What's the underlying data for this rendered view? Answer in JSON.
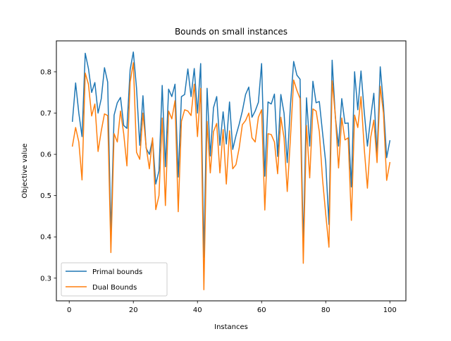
{
  "chart_data": {
    "type": "line",
    "title": "Bounds on small instances",
    "xlabel": "Instances",
    "ylabel": "Objective value",
    "xlim": [
      -4,
      105
    ],
    "ylim": [
      0.245,
      0.875
    ],
    "xticks": [
      0,
      20,
      40,
      60,
      80,
      100
    ],
    "yticks": [
      0.3,
      0.4,
      0.5,
      0.6,
      0.7,
      0.8
    ],
    "xtick_labels": [
      "0",
      "20",
      "40",
      "60",
      "80",
      "100"
    ],
    "ytick_labels": [
      "0.3",
      "0.4",
      "0.5",
      "0.6",
      "0.7",
      "0.8"
    ],
    "grid": false,
    "legend_position": "lower-left",
    "x": [
      1,
      2,
      3,
      4,
      5,
      6,
      7,
      8,
      9,
      10,
      11,
      12,
      13,
      14,
      15,
      16,
      17,
      18,
      19,
      20,
      21,
      22,
      23,
      24,
      25,
      26,
      27,
      28,
      29,
      30,
      31,
      32,
      33,
      34,
      35,
      36,
      37,
      38,
      39,
      40,
      41,
      42,
      43,
      44,
      45,
      46,
      47,
      48,
      49,
      50,
      51,
      52,
      53,
      54,
      55,
      56,
      57,
      58,
      59,
      60,
      61,
      62,
      63,
      64,
      65,
      66,
      67,
      68,
      69,
      70,
      71,
      72,
      73,
      74,
      75,
      76,
      77,
      78,
      79,
      80,
      81,
      82,
      83,
      84,
      85,
      86,
      87,
      88,
      89,
      90,
      91,
      92,
      93,
      94,
      95,
      96,
      97,
      98,
      99,
      100
    ],
    "series": [
      {
        "name": "Primal bounds",
        "color": "#1f77b4",
        "values": [
          0.68,
          0.773,
          0.7,
          0.643,
          0.845,
          0.808,
          0.75,
          0.774,
          0.7,
          0.735,
          0.81,
          0.775,
          0.405,
          0.695,
          0.725,
          0.738,
          0.67,
          0.663,
          0.805,
          0.848,
          0.76,
          0.622,
          0.742,
          0.615,
          0.6,
          0.637,
          0.528,
          0.56,
          0.767,
          0.57,
          0.758,
          0.74,
          0.77,
          0.545,
          0.74,
          0.745,
          0.807,
          0.74,
          0.808,
          0.7,
          0.82,
          0.35,
          0.76,
          0.596,
          0.713,
          0.74,
          0.622,
          0.703,
          0.625,
          0.727,
          0.612,
          0.645,
          0.673,
          0.705,
          0.745,
          0.763,
          0.69,
          0.705,
          0.726,
          0.82,
          0.547,
          0.727,
          0.722,
          0.746,
          0.595,
          0.745,
          0.7,
          0.58,
          0.72,
          0.825,
          0.792,
          0.782,
          0.378,
          0.737,
          0.62,
          0.777,
          0.725,
          0.728,
          0.653,
          0.58,
          0.43,
          0.828,
          0.69,
          0.62,
          0.735,
          0.675,
          0.676,
          0.521,
          0.8,
          0.708,
          0.802,
          0.704,
          0.62,
          0.688,
          0.748,
          0.597,
          0.812,
          0.72,
          0.592,
          0.633
        ]
      },
      {
        "name": "Dual Bounds",
        "color": "#ff7f0e",
        "values": [
          0.62,
          0.665,
          0.63,
          0.538,
          0.797,
          0.77,
          0.693,
          0.722,
          0.607,
          0.657,
          0.698,
          0.694,
          0.362,
          0.65,
          0.63,
          0.705,
          0.65,
          0.572,
          0.775,
          0.822,
          0.605,
          0.588,
          0.7,
          0.618,
          0.565,
          0.64,
          0.466,
          0.5,
          0.688,
          0.476,
          0.705,
          0.686,
          0.73,
          0.461,
          0.68,
          0.708,
          0.705,
          0.694,
          0.77,
          0.643,
          0.76,
          0.272,
          0.68,
          0.555,
          0.655,
          0.675,
          0.555,
          0.66,
          0.528,
          0.657,
          0.565,
          0.575,
          0.615,
          0.672,
          0.682,
          0.7,
          0.64,
          0.63,
          0.69,
          0.708,
          0.465,
          0.65,
          0.648,
          0.63,
          0.553,
          0.69,
          0.64,
          0.51,
          0.64,
          0.78,
          0.755,
          0.735,
          0.336,
          0.67,
          0.543,
          0.71,
          0.705,
          0.655,
          0.54,
          0.455,
          0.375,
          0.778,
          0.694,
          0.567,
          0.688,
          0.635,
          0.64,
          0.44,
          0.695,
          0.665,
          0.74,
          0.615,
          0.518,
          0.64,
          0.683,
          0.58,
          0.765,
          0.7,
          0.537,
          0.58
        ]
      }
    ]
  }
}
